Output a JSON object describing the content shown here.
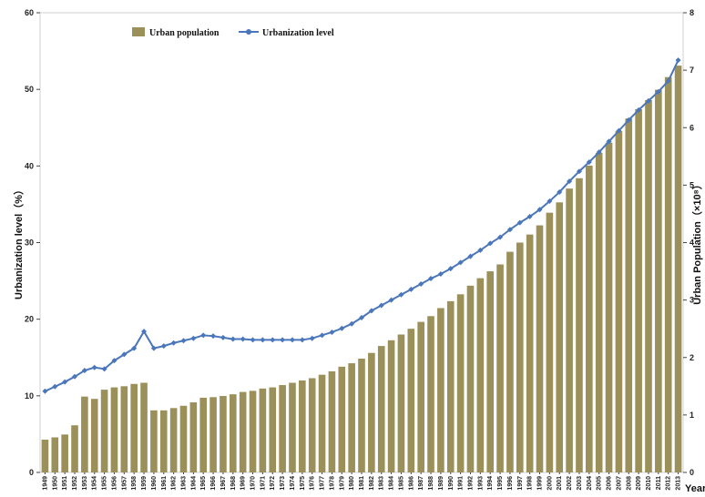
{
  "chart_data": {
    "type": "bar",
    "legend": {
      "placement": "top-left",
      "bar_label": "Urban population",
      "line_label": "Urbanization level"
    },
    "y_left": {
      "label": "Urbanization level（%）",
      "range": [
        0,
        60
      ],
      "ticks": [
        "0",
        "10",
        "20",
        "30",
        "40",
        "50",
        "60"
      ]
    },
    "y_right": {
      "label": "Urban Population（×10⁸）",
      "range": [
        0,
        8
      ],
      "ticks": [
        "0",
        "1",
        "2",
        "3",
        "4",
        "5",
        "6",
        "7",
        "8"
      ]
    },
    "xlabel": "Year",
    "categories": [
      "1949",
      "1950",
      "1951",
      "1952",
      "1953",
      "1954",
      "1955",
      "1956",
      "1957",
      "1958",
      "1959",
      "1960",
      "1961",
      "1962",
      "1963",
      "1964",
      "1965",
      "1966",
      "1967",
      "1968",
      "1969",
      "1970",
      "1971",
      "1972",
      "1973",
      "1974",
      "1975",
      "1976",
      "1977",
      "1978",
      "1979",
      "1980",
      "1981",
      "1982",
      "1983",
      "1984",
      "1985",
      "1986",
      "1987",
      "1988",
      "1989",
      "1990",
      "1991",
      "1992",
      "1993",
      "1994",
      "1995",
      "1996",
      "1997",
      "1998",
      "1999",
      "2000",
      "2001",
      "2002",
      "2003",
      "2004",
      "2005",
      "2006",
      "2007",
      "2008",
      "2009",
      "2010",
      "2011",
      "2012",
      "2013"
    ],
    "series": [
      {
        "name": "Urban population",
        "kind": "bar",
        "axis": "right",
        "color": "#9b8f5a",
        "values": [
          0.57,
          0.61,
          0.66,
          0.82,
          1.32,
          1.28,
          1.44,
          1.48,
          1.5,
          1.54,
          1.56,
          1.08,
          1.08,
          1.12,
          1.16,
          1.22,
          1.3,
          1.31,
          1.33,
          1.36,
          1.4,
          1.42,
          1.46,
          1.48,
          1.52,
          1.56,
          1.6,
          1.64,
          1.7,
          1.76,
          1.84,
          1.9,
          1.98,
          2.08,
          2.2,
          2.3,
          2.4,
          2.5,
          2.62,
          2.72,
          2.86,
          2.98,
          3.1,
          3.25,
          3.38,
          3.5,
          3.62,
          3.84,
          4.0,
          4.14,
          4.3,
          4.52,
          4.7,
          4.94,
          5.12,
          5.34,
          5.56,
          5.74,
          5.94,
          6.16,
          6.32,
          6.48,
          6.66,
          6.88,
          7.08
        ]
      },
      {
        "name": "Urbanization level",
        "kind": "line",
        "axis": "left",
        "color": "#4a76bb",
        "values": [
          10.6,
          11.2,
          11.8,
          12.5,
          13.3,
          13.7,
          13.5,
          14.6,
          15.4,
          16.2,
          18.4,
          16.2,
          16.5,
          16.9,
          17.2,
          17.5,
          17.9,
          17.8,
          17.6,
          17.4,
          17.4,
          17.3,
          17.3,
          17.3,
          17.3,
          17.3,
          17.3,
          17.5,
          17.9,
          18.3,
          18.8,
          19.4,
          20.2,
          21.1,
          21.8,
          22.5,
          23.2,
          23.9,
          24.6,
          25.3,
          25.9,
          26.6,
          27.4,
          28.2,
          29.0,
          29.9,
          30.7,
          31.7,
          32.6,
          33.4,
          34.3,
          35.4,
          36.6,
          38.0,
          39.3,
          40.5,
          41.8,
          43.2,
          44.6,
          46.0,
          47.3,
          48.5,
          49.7,
          51.1,
          53.8
        ]
      }
    ]
  }
}
